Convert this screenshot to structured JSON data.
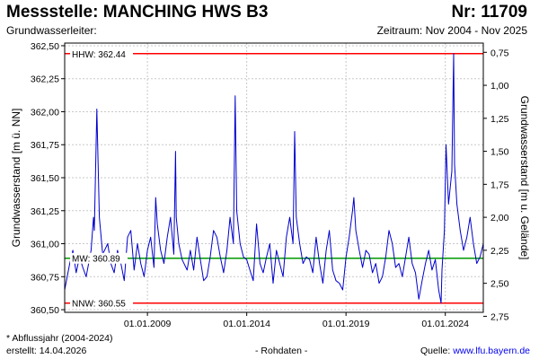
{
  "header": {
    "station": "Messstelle: MANCHING HWS B3",
    "number": "Nr: 11709",
    "aquifer": "Grundwasserleiter:",
    "period": "Zeitraum: Nov 2004 - Nov 2025"
  },
  "footer": {
    "note": "* Abflussjahr (2004-2024)",
    "created": "erstellt:  14.04.2026",
    "raw": "- Rohdaten -",
    "source_label": "Quelle: ",
    "source_url": "www.lfu.bayern.de"
  },
  "colors": {
    "series": "#0000cc",
    "hhw_line": "#ff0000",
    "nnw_line": "#ff0000",
    "mhw_line": "#009900",
    "grid": "#c8c8c8",
    "frame": "#000000"
  },
  "chart_data": {
    "type": "line",
    "title": "",
    "ylabel": "Grundwasserstand [m ü. NN]",
    "ylabel_right": "Grundwasserstand [m u. Gelände]",
    "x_range": [
      "2004-11-01",
      "2025-11-30"
    ],
    "ylim": [
      360.48,
      362.52
    ],
    "y_ticks": [
      360.5,
      360.75,
      361.0,
      361.25,
      361.5,
      361.75,
      362.0,
      362.25,
      362.5
    ],
    "y_tick_labels": [
      "360,50",
      "360,75",
      "361,00",
      "361,25",
      "361,50",
      "361,75",
      "362,00",
      "362,25",
      "362,50"
    ],
    "right_axis": {
      "ticks": [
        0.75,
        1.0,
        1.25,
        1.5,
        1.75,
        2.0,
        2.25,
        2.5,
        2.75
      ],
      "tick_labels": [
        "0,75",
        "1,00",
        "1,25",
        "1,50",
        "1,75",
        "2,00",
        "2,25",
        "2,50",
        "2,75"
      ],
      "ground_level": 363.2
    },
    "x_ticks": [
      "2009-01-01",
      "2014-01-01",
      "2019-01-01",
      "2024-01-01"
    ],
    "x_tick_labels": [
      "01.01.2009",
      "01.01.2014",
      "01.01.2019",
      "01.01.2024"
    ],
    "grid": true,
    "reference_lines": [
      {
        "label": "HHW: 362.44",
        "value": 362.44,
        "color": "#ff0000"
      },
      {
        "label": "MW: 360.89",
        "value": 360.89,
        "color": "#009900"
      },
      {
        "label": "NNW: 360.55",
        "value": 360.55,
        "color": "#ff0000"
      }
    ],
    "series": [
      {
        "x": [
          "2004-11-01",
          "2005-02-01",
          "2005-04-01",
          "2005-06-01",
          "2005-08-01",
          "2005-10-01",
          "2005-12-01",
          "2006-03-01",
          "2006-04-15",
          "2006-05-01",
          "2006-06-15",
          "2006-08-01",
          "2006-10-01",
          "2007-01-01",
          "2007-03-01",
          "2007-05-01",
          "2007-07-01",
          "2007-09-01",
          "2007-11-01",
          "2008-01-01",
          "2008-03-01",
          "2008-05-01",
          "2008-07-01",
          "2008-09-01",
          "2008-11-01",
          "2009-01-01",
          "2009-03-01",
          "2009-05-01",
          "2009-06-01",
          "2009-07-01",
          "2009-09-01",
          "2009-11-01",
          "2010-01-01",
          "2010-03-01",
          "2010-05-01",
          "2010-06-01",
          "2010-06-15",
          "2010-08-01",
          "2010-10-01",
          "2011-01-01",
          "2011-03-01",
          "2011-05-01",
          "2011-07-01",
          "2011-09-01",
          "2011-11-01",
          "2012-01-01",
          "2012-03-01",
          "2012-05-01",
          "2012-07-01",
          "2012-09-01",
          "2012-11-01",
          "2013-01-01",
          "2013-03-01",
          "2013-05-01",
          "2013-06-03",
          "2013-07-01",
          "2013-09-01",
          "2013-11-01",
          "2014-01-01",
          "2014-03-01",
          "2014-05-01",
          "2014-07-01",
          "2014-09-01",
          "2014-11-01",
          "2015-01-01",
          "2015-03-01",
          "2015-05-01",
          "2015-07-01",
          "2015-09-01",
          "2015-11-01",
          "2016-01-01",
          "2016-03-01",
          "2016-05-01",
          "2016-06-01",
          "2016-07-01",
          "2016-09-01",
          "2016-11-01",
          "2017-01-01",
          "2017-03-01",
          "2017-05-01",
          "2017-07-01",
          "2017-09-01",
          "2017-11-01",
          "2018-01-01",
          "2018-03-01",
          "2018-05-01",
          "2018-07-01",
          "2018-09-01",
          "2018-11-01",
          "2019-01-01",
          "2019-03-01",
          "2019-05-01",
          "2019-05-25",
          "2019-07-01",
          "2019-09-01",
          "2019-11-01",
          "2020-01-01",
          "2020-03-01",
          "2020-05-01",
          "2020-07-01",
          "2020-09-01",
          "2020-11-01",
          "2021-01-01",
          "2021-03-01",
          "2021-05-01",
          "2021-07-01",
          "2021-09-01",
          "2021-11-01",
          "2022-01-01",
          "2022-03-01",
          "2022-05-01",
          "2022-07-01",
          "2022-09-01",
          "2022-11-01",
          "2023-01-01",
          "2023-03-01",
          "2023-05-01",
          "2023-07-01",
          "2023-09-01",
          "2023-10-15",
          "2023-11-01",
          "2023-12-15",
          "2024-01-15",
          "2024-03-01",
          "2024-05-01",
          "2024-06-03",
          "2024-06-20",
          "2024-08-01",
          "2024-10-01",
          "2024-12-01",
          "2025-02-01",
          "2025-04-01",
          "2025-06-01",
          "2025-08-01",
          "2025-10-01",
          "2025-11-30"
        ],
        "values": [
          360.65,
          360.85,
          360.95,
          360.78,
          360.9,
          360.82,
          360.75,
          360.95,
          361.2,
          361.1,
          362.02,
          361.2,
          360.92,
          361.0,
          360.85,
          360.78,
          360.95,
          360.85,
          360.72,
          361.05,
          361.1,
          360.8,
          361.0,
          360.85,
          360.75,
          360.95,
          361.05,
          360.82,
          361.35,
          361.15,
          360.95,
          360.85,
          361.05,
          361.2,
          360.92,
          361.7,
          361.2,
          361.0,
          360.88,
          360.8,
          360.95,
          360.8,
          361.05,
          360.88,
          360.72,
          360.75,
          360.9,
          361.1,
          361.05,
          360.9,
          360.78,
          360.95,
          361.2,
          361.0,
          362.12,
          361.25,
          361.0,
          360.9,
          360.88,
          360.8,
          360.72,
          361.15,
          360.85,
          360.78,
          360.9,
          361.0,
          360.7,
          360.95,
          360.85,
          360.75,
          361.05,
          361.2,
          361.0,
          361.85,
          361.2,
          361.0,
          360.85,
          360.9,
          360.88,
          360.78,
          361.05,
          360.85,
          360.7,
          360.95,
          361.1,
          360.8,
          360.72,
          360.7,
          360.65,
          360.9,
          361.05,
          361.25,
          361.35,
          361.1,
          360.95,
          360.82,
          360.95,
          360.92,
          360.78,
          360.85,
          360.7,
          360.75,
          360.9,
          361.1,
          361.0,
          360.82,
          360.85,
          360.75,
          360.9,
          361.05,
          360.85,
          360.78,
          360.58,
          360.72,
          360.85,
          360.95,
          360.8,
          360.88,
          360.65,
          360.55,
          360.8,
          361.1,
          361.75,
          361.3,
          361.55,
          362.44,
          361.6,
          361.3,
          361.1,
          360.95,
          361.05,
          361.2,
          361.0,
          360.85,
          360.9,
          361.0
        ]
      }
    ]
  }
}
